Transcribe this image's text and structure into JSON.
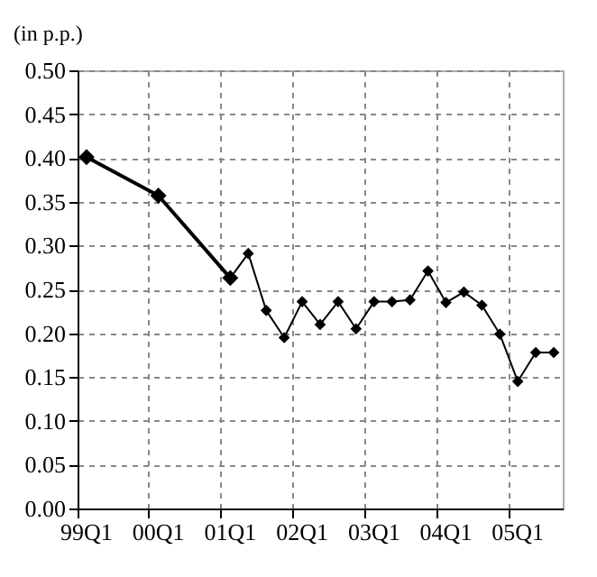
{
  "chart_data": {
    "type": "line",
    "ylabel": "(in p.p.)",
    "categories": [
      "99Q1",
      null,
      null,
      null,
      "00Q1",
      null,
      null,
      null,
      "01Q1",
      null,
      null,
      null,
      "02Q1",
      null,
      null,
      null,
      "03Q1",
      null,
      null,
      null,
      "04Q1",
      null,
      null,
      null,
      "05Q1",
      null,
      null
    ],
    "ylim": [
      0,
      0.5
    ],
    "yticks": [
      {
        "value": 0,
        "label": "0.00"
      },
      {
        "value": 0.05,
        "label": "0.05"
      },
      {
        "value": 0.1,
        "label": "0.10"
      },
      {
        "value": 0.15,
        "label": "0.15"
      },
      {
        "value": 0.2,
        "label": "0.20"
      },
      {
        "value": 0.25,
        "label": "0.25"
      },
      {
        "value": 0.3,
        "label": "0.30"
      },
      {
        "value": 0.35,
        "label": "0.35"
      },
      {
        "value": 0.4,
        "label": "0.40"
      },
      {
        "value": 0.45,
        "label": "0.45"
      },
      {
        "value": 0.5,
        "label": "0.50"
      }
    ],
    "series": [
      {
        "color": "#000000",
        "values": [
          0.401,
          null,
          null,
          null,
          0.357,
          null,
          null,
          null,
          0.263,
          null,
          null,
          null,
          null,
          null,
          null,
          null,
          null,
          null,
          null,
          null,
          null,
          null,
          null,
          null,
          null,
          null,
          null
        ]
      },
      {
        "color": "#000000",
        "values": [
          null,
          null,
          null,
          null,
          null,
          null,
          null,
          null,
          0.263,
          0.291,
          0.226,
          0.195,
          0.236,
          0.21,
          0.236,
          0.205,
          0.236,
          0.236,
          0.238,
          0.271,
          0.235,
          0.247,
          0.232,
          0.199,
          0.145,
          0.178,
          0.178
        ]
      }
    ],
    "grid": true,
    "marker": "diamond",
    "line_style": "solid"
  }
}
